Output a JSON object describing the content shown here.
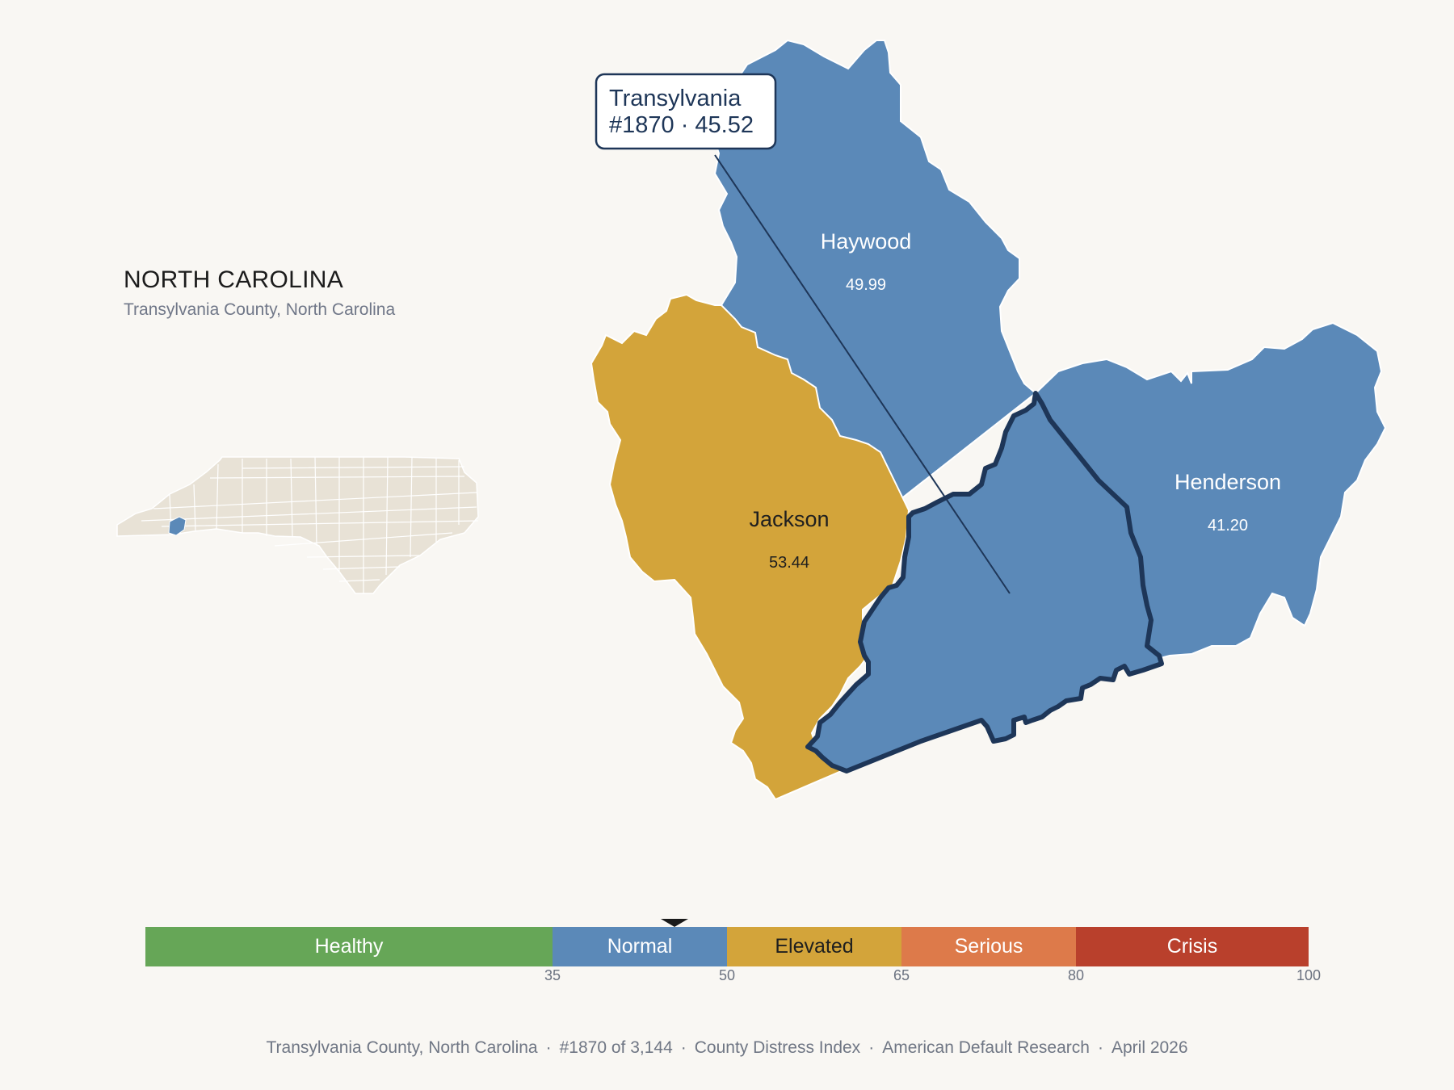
{
  "header": {
    "state_title": "NORTH CAROLINA",
    "subtitle": "Transylvania County, North Carolina"
  },
  "callout": {
    "county": "Transylvania",
    "detail": "#1870 · 45.52"
  },
  "counties": {
    "haywood": {
      "name": "Haywood",
      "score": "49.99",
      "category": "Normal"
    },
    "jackson": {
      "name": "Jackson",
      "score": "53.44",
      "category": "Elevated"
    },
    "henderson": {
      "name": "Henderson",
      "score": "41.20",
      "category": "Normal"
    },
    "transylvania": {
      "name": "Transylvania",
      "score": "45.52",
      "category": "Normal"
    }
  },
  "legend": {
    "segments": [
      {
        "label": "Healthy",
        "from": 0,
        "to": 35,
        "color": "#66a657",
        "text_color": "#ffffff"
      },
      {
        "label": "Normal",
        "from": 35,
        "to": 50,
        "color": "#5b89b8",
        "text_color": "#ffffff"
      },
      {
        "label": "Elevated",
        "from": 50,
        "to": 65,
        "color": "#d3a43a",
        "text_color": "#1f1f1f"
      },
      {
        "label": "Serious",
        "from": 65,
        "to": 80,
        "color": "#dd7a4a",
        "text_color": "#ffffff"
      },
      {
        "label": "Crisis",
        "from": 80,
        "to": 100,
        "color": "#b9402c",
        "text_color": "#ffffff"
      }
    ],
    "ticks": [
      "35",
      "50",
      "65",
      "80",
      "100"
    ],
    "marker_value": 45.52
  },
  "footer": {
    "location": "Transylvania County, North Carolina",
    "rank": "#1870 of 3,144",
    "index": "County Distress Index",
    "source": "American Default Research",
    "date": "April 2026"
  },
  "colors": {
    "normal": "#5b89b8",
    "elevated": "#d3a43a",
    "highlight_outline": "#1e3658",
    "inset_fill": "#e8e2d6",
    "background": "#f9f7f3"
  }
}
